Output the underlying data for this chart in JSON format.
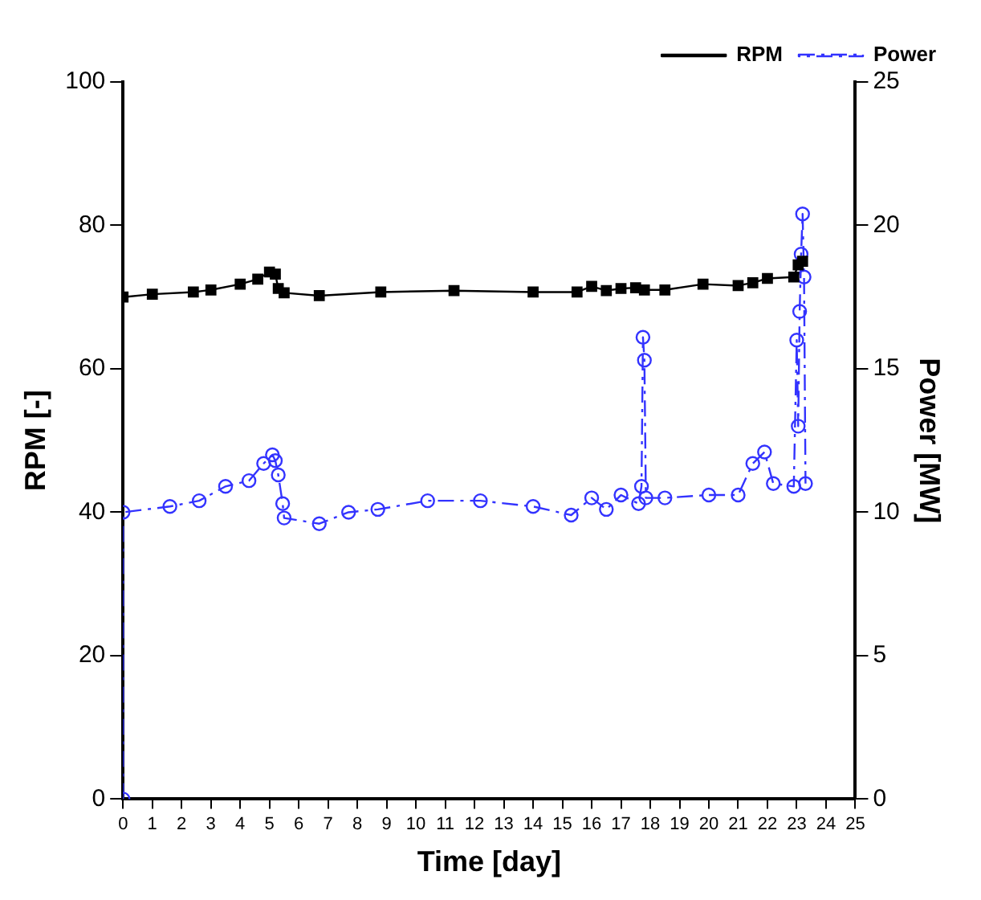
{
  "chart_data": {
    "type": "line",
    "xlabel": "Time [day]",
    "ylabel": "RPM [-]",
    "y2label": "Power [MW]",
    "xlim": [
      0,
      25
    ],
    "xticks": [
      0,
      1,
      2,
      3,
      4,
      5,
      6,
      7,
      8,
      9,
      10,
      11,
      12,
      13,
      14,
      15,
      16,
      17,
      18,
      19,
      20,
      21,
      22,
      23,
      24,
      25
    ],
    "ylim": [
      0,
      100
    ],
    "yticks": [
      0,
      20,
      40,
      60,
      80,
      100
    ],
    "y2lim": [
      0,
      25
    ],
    "y2ticks": [
      0,
      5,
      10,
      15,
      20,
      25
    ],
    "grid": false,
    "legend": "top right",
    "series": [
      {
        "name": "RPM",
        "color": "#000000",
        "marker": "square",
        "line_style": "solid",
        "x": [
          0,
          1,
          2.4,
          3,
          4,
          4.6,
          5.0,
          5.2,
          5.3,
          5.5,
          6.7,
          8.8,
          11.3,
          14,
          15.5,
          16,
          16.5,
          17,
          17.5,
          17.8,
          18.5,
          19.8,
          21,
          21.5,
          22,
          22.9,
          23.05,
          23.2
        ],
        "values": [
          70,
          70.4,
          70.7,
          71,
          71.8,
          72.5,
          73.5,
          73.2,
          71.2,
          70.6,
          70.2,
          70.7,
          70.9,
          70.7,
          70.7,
          71.5,
          70.9,
          71.2,
          71.3,
          71,
          71,
          71.8,
          71.6,
          72,
          72.6,
          72.8,
          74.5,
          75
        ]
      },
      {
        "name": "Power",
        "color": "#3333ff",
        "marker": "circle",
        "line_style": "dashed",
        "axis": "y2",
        "x": [
          0,
          0,
          1.6,
          2.6,
          3.5,
          4.3,
          4.8,
          5.1,
          5.2,
          5.3,
          5.45,
          5.5,
          6.7,
          7.7,
          8.7,
          10.4,
          12.2,
          14,
          15.3,
          16,
          16.5,
          17,
          17.6,
          17.7,
          17.75,
          17.8,
          17.85,
          18.5,
          20,
          21,
          21.5,
          21.9,
          22.2,
          22.9,
          23.0,
          23.05,
          23.1,
          23.15,
          23.2,
          23.25,
          23.3
        ],
        "values": [
          0,
          10.0,
          10.2,
          10.4,
          10.9,
          11.1,
          11.7,
          12.0,
          11.8,
          11.3,
          10.3,
          9.8,
          9.6,
          10.0,
          10.1,
          10.4,
          10.4,
          10.2,
          9.9,
          10.5,
          10.1,
          10.6,
          10.3,
          10.9,
          16.1,
          15.3,
          10.5,
          10.5,
          10.6,
          10.6,
          11.7,
          12.1,
          11.0,
          10.9,
          16.0,
          13.0,
          17.0,
          19.0,
          20.4,
          18.2,
          11.0
        ]
      }
    ]
  }
}
